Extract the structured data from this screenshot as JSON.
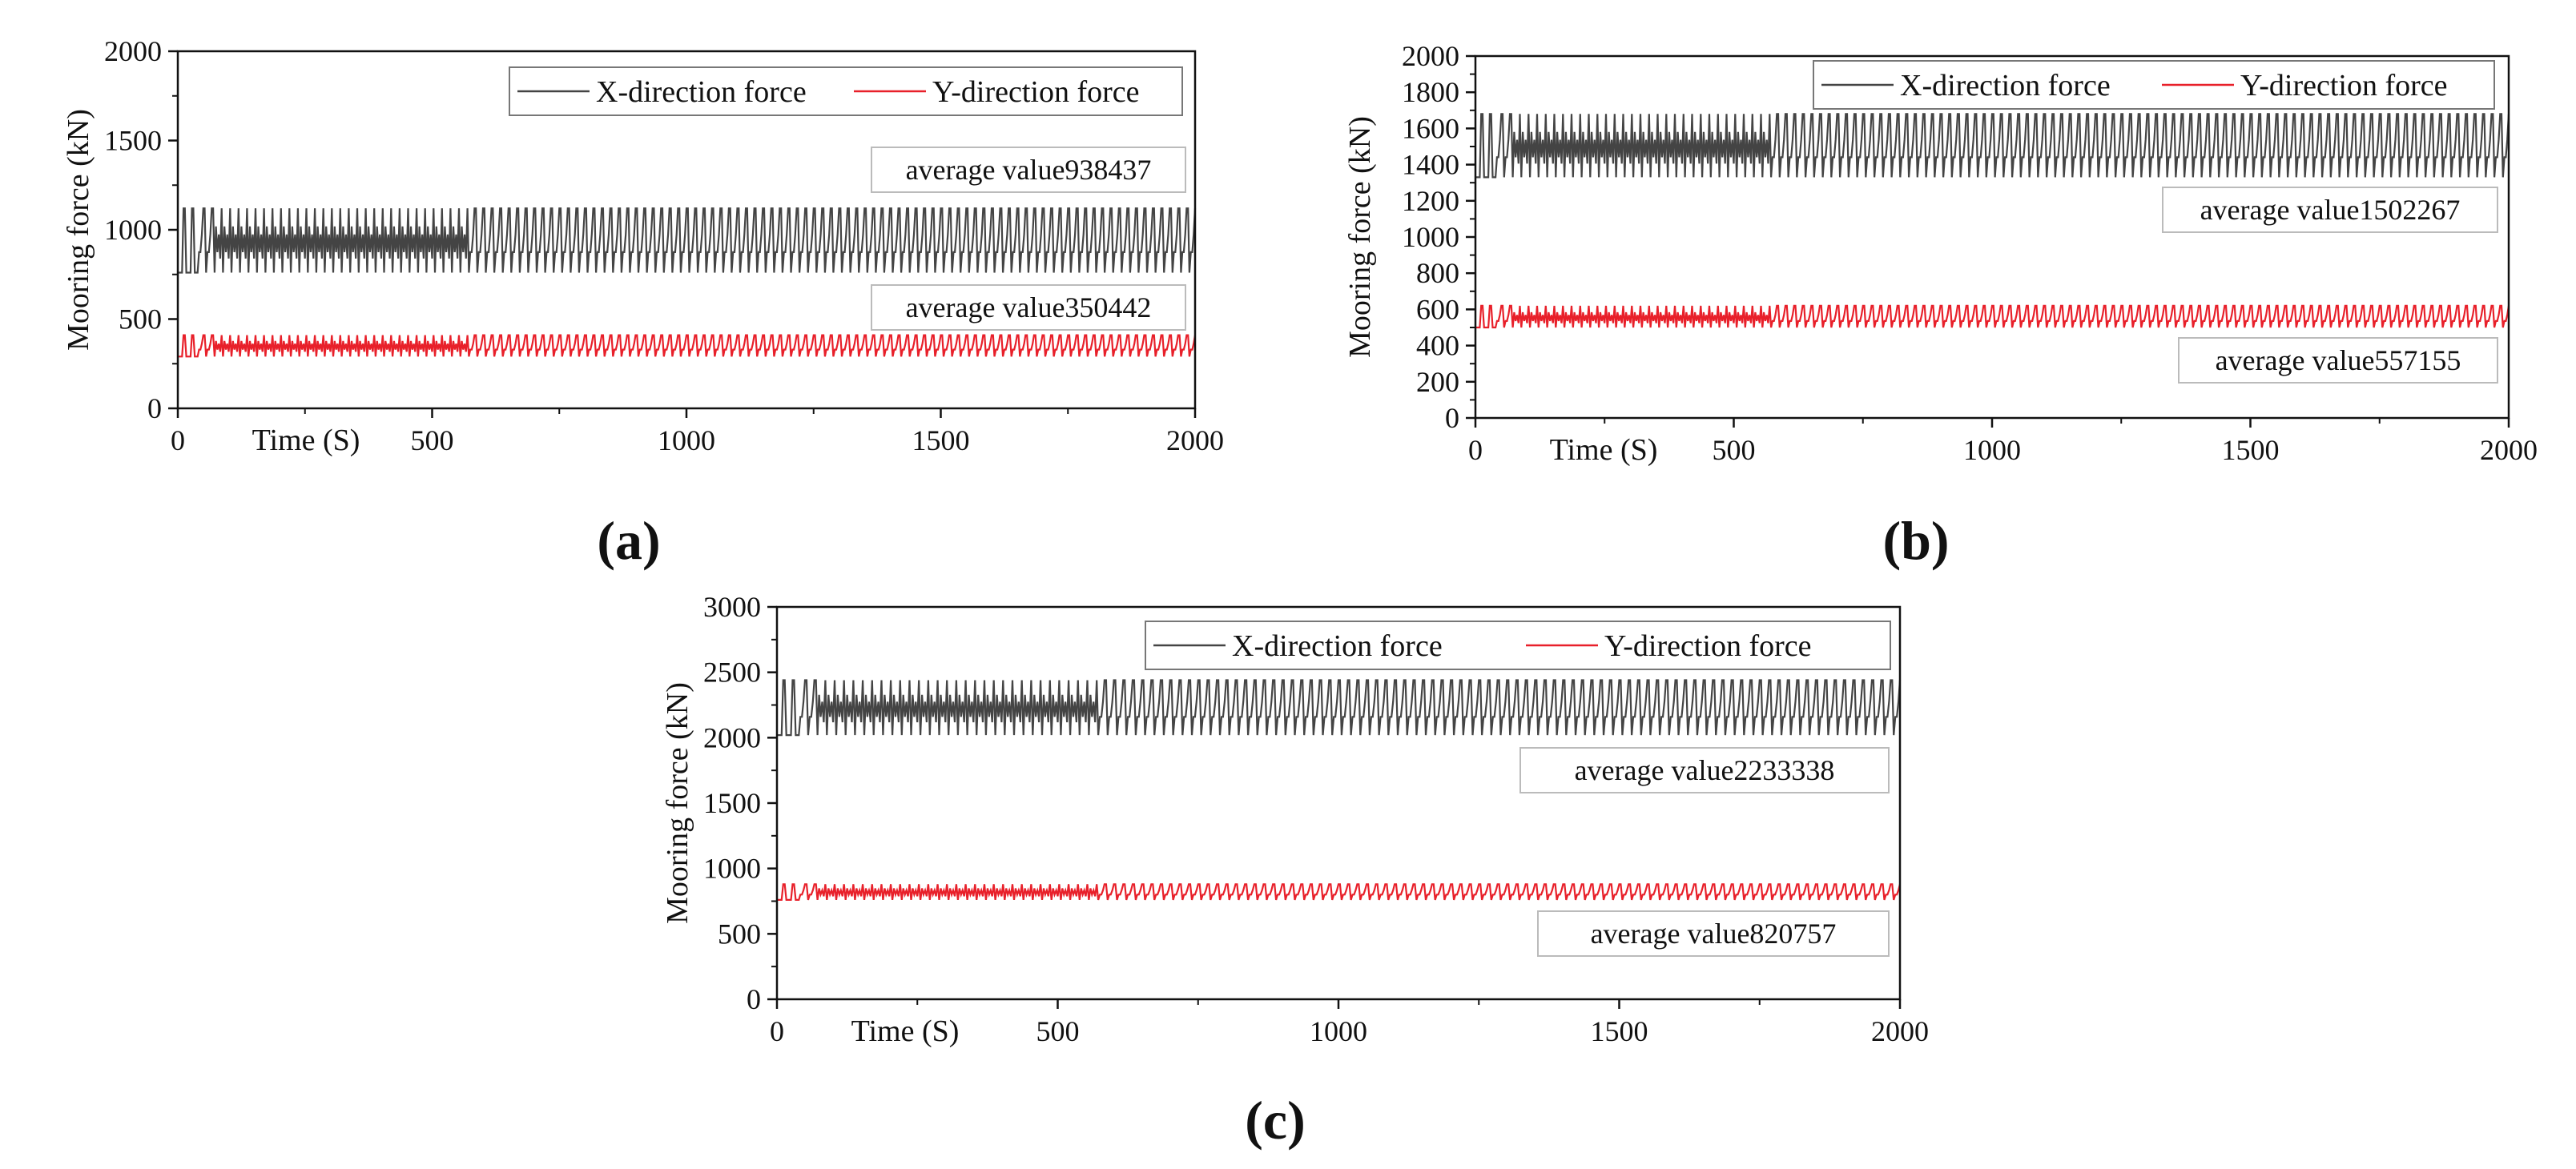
{
  "colors": {
    "x_force": "#444444",
    "y_force": "#e8202a",
    "axis": "#111111"
  },
  "chart_data": [
    {
      "type": "line",
      "panel_label": "(a)",
      "xlabel": "Time (S)",
      "ylabel": "Mooring force (kN)",
      "xlim": [
        0,
        2000
      ],
      "ylim": [
        0,
        2000
      ],
      "x_ticks": [
        0,
        500,
        1000,
        1500,
        2000
      ],
      "y_ticks": [
        0,
        500,
        1000,
        1500,
        2000
      ],
      "legend": [
        "X-direction force",
        "Y-direction force"
      ],
      "legend_position": "top-right",
      "series": [
        {
          "name": "X-direction force",
          "mean": 938,
          "min": 760,
          "max": 1120,
          "cycles": 120
        },
        {
          "name": "Y-direction force",
          "mean": 350,
          "min": 290,
          "max": 410,
          "cycles": 120
        }
      ],
      "annotations": [
        "average value938437",
        "average value350442"
      ]
    },
    {
      "type": "line",
      "panel_label": "(b)",
      "xlabel": "Time (S)",
      "ylabel": "Mooring force (kN)",
      "xlim": [
        0,
        2000
      ],
      "ylim": [
        0,
        2000
      ],
      "x_ticks": [
        0,
        500,
        1000,
        1500,
        2000
      ],
      "y_ticks": [
        0,
        200,
        400,
        600,
        800,
        1000,
        1200,
        1400,
        1600,
        1800,
        2000
      ],
      "legend": [
        "X-direction force",
        "Y-direction force"
      ],
      "legend_position": "top-right",
      "series": [
        {
          "name": "X-direction force",
          "mean": 1502,
          "min": 1330,
          "max": 1680,
          "cycles": 120
        },
        {
          "name": "Y-direction force",
          "mean": 557,
          "min": 500,
          "max": 620,
          "cycles": 120
        }
      ],
      "annotations": [
        "average value1502267",
        "average value557155"
      ]
    },
    {
      "type": "line",
      "panel_label": "(c)",
      "xlabel": "Time (S)",
      "ylabel": "Mooring force (kN)",
      "xlim": [
        0,
        2000
      ],
      "ylim": [
        0,
        3000
      ],
      "x_ticks": [
        0,
        500,
        1000,
        1500,
        2000
      ],
      "y_ticks": [
        0,
        500,
        1000,
        1500,
        2000,
        2500,
        3000
      ],
      "legend": [
        "X-direction force",
        "Y-direction force"
      ],
      "legend_position": "top-right",
      "series": [
        {
          "name": "X-direction force",
          "mean": 2233,
          "min": 2020,
          "max": 2440,
          "cycles": 120
        },
        {
          "name": "Y-direction force",
          "mean": 821,
          "min": 760,
          "max": 880,
          "cycles": 120
        }
      ],
      "annotations": [
        "average value2233338",
        "average value820757"
      ]
    }
  ]
}
